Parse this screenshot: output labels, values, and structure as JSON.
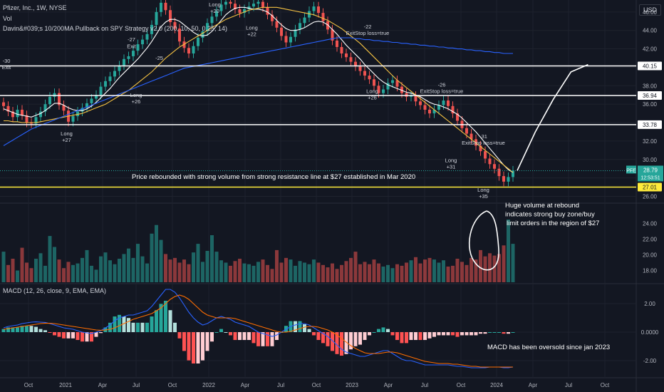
{
  "header": {
    "symbol_line": "Pfizer, Inc., 1W, NYSE",
    "vol_label": "Vol",
    "strategy_line": "Davin&#039;s 10/200MA Pullback on SPY Strategy v2.0 (200, 10, 50, 0.25, 14)",
    "currency": "USD"
  },
  "chart_data": [
    {
      "type": "candlestick",
      "title": "Pfizer, Inc., 1W, NYSE",
      "ticker": "PFE",
      "last_price": "28.79",
      "countdown": "12:53:51",
      "price_axis_ticks": [
        "46.00",
        "44.00",
        "42.00",
        "40.00",
        "38.00",
        "36.00",
        "34.00",
        "32.00",
        "30.00",
        "28.00",
        "26.00"
      ],
      "ylim": [
        25.5,
        47.3
      ],
      "x_axis_ticks": [
        "Oct",
        "2021",
        "Apr",
        "Jul",
        "Oct",
        "2022",
        "Apr",
        "Jul",
        "Oct",
        "2023",
        "Apr",
        "Jul",
        "Oct",
        "2024",
        "Apr",
        "Jul",
        "Oct"
      ],
      "horizontal_levels": [
        {
          "price": 40.15,
          "label": "40.15",
          "color": "#ffffff"
        },
        {
          "price": 36.94,
          "label": "36.94",
          "color": "#ffffff"
        },
        {
          "price": 33.78,
          "label": "33.78",
          "color": "#ffffff"
        },
        {
          "price": 27.01,
          "label": "27.01",
          "color": "#ffeb3b"
        }
      ],
      "series": [
        {
          "name": "Close",
          "color": "#d1d4dc",
          "values": [
            35.8,
            35.2,
            34.6,
            35.4,
            34.8,
            34.0,
            33.9,
            34.6,
            35.2,
            36.0,
            36.8,
            37.2,
            35.9,
            35.3,
            34.1,
            34.7,
            35.2,
            35.6,
            36.1,
            36.6,
            37.0,
            37.9,
            38.5,
            39.0,
            39.6,
            40.2,
            40.9,
            41.2,
            41.8,
            42.5,
            43.0,
            43.6,
            44.6,
            46.0,
            47.0,
            46.2,
            44.9,
            44.2,
            42.8,
            42.1,
            41.5,
            42.3,
            43.2,
            43.9,
            44.8,
            45.5,
            46.1,
            46.8,
            47.1,
            46.9,
            46.3,
            45.9,
            46.3,
            46.6,
            46.9,
            47.1,
            46.5,
            45.7,
            45.0,
            44.3,
            43.4,
            42.7,
            43.3,
            44.1,
            44.8,
            45.4,
            46.1,
            46.6,
            45.9,
            45.0,
            44.1,
            42.9,
            42.2,
            41.5,
            41.1,
            40.6,
            40.1,
            39.6,
            39.1,
            38.7,
            38.0,
            37.2,
            37.6,
            38.3,
            38.6,
            37.9,
            37.2,
            36.8,
            36.9,
            36.3,
            35.9,
            35.4,
            35.0,
            35.4,
            35.9,
            36.4,
            35.8,
            35.0,
            34.2,
            33.4,
            32.8,
            32.2,
            31.5,
            30.9,
            30.1,
            29.5,
            29.0,
            28.2,
            27.6,
            28.1,
            28.8
          ]
        },
        {
          "name": "MA10",
          "color": "#ffffff",
          "values": [
            35.5,
            35.3,
            35.1,
            34.9,
            34.8,
            34.7,
            34.6,
            34.8,
            35.0,
            35.3,
            35.7,
            36.1,
            36.1,
            35.9,
            35.6,
            35.4,
            35.3,
            35.3,
            35.5,
            35.8,
            36.2,
            36.7,
            37.2,
            37.7,
            38.3,
            38.9,
            39.4,
            39.9,
            40.4,
            40.9,
            41.5,
            42.1,
            42.8,
            43.6,
            44.4,
            44.9,
            45.2,
            45.2,
            45.0,
            44.6,
            44.2,
            43.8,
            43.5,
            43.4,
            43.5,
            43.9,
            44.5,
            45.1,
            45.7,
            46.1,
            46.4,
            46.5,
            46.5,
            46.4,
            46.3,
            46.3,
            46.2,
            46.0,
            45.6,
            45.1,
            44.6,
            44.2,
            44.0,
            44.0,
            44.1,
            44.3,
            44.6,
            44.9,
            45.0,
            44.9,
            44.6,
            44.1,
            43.6,
            43.0,
            42.4,
            41.9,
            41.4,
            40.9,
            40.3,
            39.8,
            39.3,
            38.8,
            38.4,
            38.1,
            37.9,
            37.7,
            37.5,
            37.3,
            37.2,
            37.0,
            36.8,
            36.5,
            36.2,
            36.0,
            35.9,
            35.7,
            35.5,
            35.2,
            34.9,
            34.5,
            34.0,
            33.5,
            33.0,
            32.4,
            31.8,
            31.2,
            30.6,
            30.0,
            29.4,
            28.9,
            28.6
          ]
        },
        {
          "name": "MA50",
          "color": "#f5c242",
          "values": [
            34.2,
            34.2,
            34.1,
            34.1,
            34.0,
            34.0,
            34.0,
            34.0,
            34.1,
            34.2,
            34.3,
            34.4,
            34.5,
            34.6,
            34.7,
            34.8,
            34.9,
            35.0,
            35.2,
            35.4,
            35.6,
            35.8,
            36.0,
            36.3,
            36.6,
            36.9,
            37.2,
            37.5,
            37.9,
            38.3,
            38.7,
            39.1,
            39.5,
            40.0,
            40.5,
            41.0,
            41.4,
            41.8,
            42.2,
            42.5,
            42.8,
            43.1,
            43.4,
            43.7,
            44.0,
            44.3,
            44.6,
            44.9,
            45.2,
            45.4,
            45.6,
            45.8,
            46.0,
            46.2,
            46.3,
            46.4,
            46.5,
            46.5,
            46.5,
            46.5,
            46.4,
            46.3,
            46.2,
            46.1,
            46.0,
            45.9,
            45.8,
            45.7,
            45.5,
            45.3,
            45.1,
            44.8,
            44.5,
            44.2,
            43.8,
            43.4,
            43.0,
            42.6,
            42.1,
            41.6,
            41.1,
            40.6,
            40.1,
            39.6,
            39.1,
            38.6,
            38.2,
            37.8,
            37.4,
            37.0,
            36.6,
            36.2,
            35.8,
            35.4,
            35.0,
            34.6,
            34.2,
            33.8,
            33.4,
            33.0,
            32.6,
            32.2,
            31.8,
            31.4,
            31.0,
            30.6,
            30.2,
            29.8,
            29.4,
            29.0,
            28.6
          ]
        },
        {
          "name": "MA200",
          "color": "#2962ff",
          "values": [
            31.5,
            31.8,
            32.1,
            32.4,
            32.7,
            33.0,
            33.3,
            33.5,
            33.7,
            33.9,
            34.1,
            34.3,
            34.5,
            34.7,
            34.9,
            35.1,
            35.3,
            35.5,
            35.7,
            35.9,
            36.1,
            36.3,
            36.5,
            36.7,
            36.9,
            37.1,
            37.3,
            37.5,
            37.7,
            37.9,
            38.1,
            38.3,
            38.5,
            38.7,
            38.9,
            39.1,
            39.3,
            39.5,
            39.7,
            39.9,
            40.0,
            40.1,
            40.2,
            40.3,
            40.4,
            40.5,
            40.6,
            40.7,
            40.8,
            40.9,
            41.0,
            41.1,
            41.2,
            41.3,
            41.4,
            41.5,
            41.6,
            41.7,
            41.8,
            41.9,
            42.0,
            42.1,
            42.2,
            42.3,
            42.4,
            42.5,
            42.6,
            42.7,
            42.8,
            42.9,
            43.0,
            43.1,
            43.2,
            43.2,
            43.2,
            43.2,
            43.1,
            43.1,
            43.0,
            43.0,
            42.9,
            42.9,
            42.8,
            42.8,
            42.7,
            42.7,
            42.6,
            42.6,
            42.5,
            42.5,
            42.4,
            42.4,
            42.3,
            42.3,
            42.2,
            42.2,
            42.1,
            42.1,
            42.0,
            42.0,
            41.9,
            41.9,
            41.8,
            41.8,
            41.7,
            41.7,
            41.6,
            41.6,
            41.5,
            41.5,
            41.5
          ]
        }
      ],
      "projection": [
        [
          28.8,
          28.8
        ],
        [
          30.5,
          33.0
        ],
        [
          32.0,
          36.5
        ],
        [
          33.5,
          39.5
        ],
        [
          34.5,
          40.3
        ]
      ],
      "trade_labels": [
        {
          "bar": 0,
          "text": "-30",
          "price": 40.5
        },
        {
          "bar": 0,
          "text": "Exit",
          "price": 39.8
        },
        {
          "bar": 13,
          "text": "Long",
          "price": 32.6
        },
        {
          "bar": 13,
          "text": "+27",
          "price": 31.9
        },
        {
          "bar": 27,
          "text": "-27",
          "price": 42.8
        },
        {
          "bar": 27,
          "text": "Exit",
          "price": 42.1
        },
        {
          "bar": 28,
          "text": "Long",
          "price": 36.8
        },
        {
          "bar": 28,
          "text": "+26",
          "price": 36.1
        },
        {
          "bar": 33,
          "text": "-25",
          "price": 40.8
        },
        {
          "bar": 45,
          "text": "Long",
          "price": 46.6
        },
        {
          "bar": 45,
          "text": "+20",
          "price": 45.9
        },
        {
          "bar": 53,
          "text": "Long",
          "price": 44.1
        },
        {
          "bar": 53,
          "text": "+22",
          "price": 43.4
        },
        {
          "bar": 78,
          "text": "-22",
          "price": 44.2
        },
        {
          "bar": 78,
          "text": "ExitStop loss=true",
          "price": 43.5
        },
        {
          "bar": 79,
          "text": "Long",
          "price": 37.2
        },
        {
          "bar": 79,
          "text": "+26",
          "price": 36.5
        },
        {
          "bar": 94,
          "text": "-26",
          "price": 37.9
        },
        {
          "bar": 94,
          "text": "ExitStop loss=true",
          "price": 37.2
        },
        {
          "bar": 103,
          "text": "-31",
          "price": 32.3
        },
        {
          "bar": 103,
          "text": "ExitStop loss=true",
          "price": 31.6
        },
        {
          "bar": 96,
          "text": "Long",
          "price": 29.7
        },
        {
          "bar": 96,
          "text": "+31",
          "price": 29.0
        },
        {
          "bar": 103,
          "text": "Long",
          "price": 26.5
        },
        {
          "bar": 103,
          "text": "+35",
          "price": 25.8
        }
      ],
      "annotations": [
        "Price rebounded with strong volume from strong resistance line at $27 established in Mar 2020"
      ]
    },
    {
      "type": "bar",
      "title": "Vol",
      "ylim": [
        16.5,
        26.5
      ],
      "y_axis_ticks": [
        "24.00",
        "22.00",
        "20.00",
        "18.00"
      ],
      "values": [
        20.4,
        18.7,
        19.5,
        18.0,
        20.9,
        19.0,
        18.3,
        19.5,
        20.2,
        18.6,
        22.4,
        21.0,
        19.4,
        18.3,
        19.1,
        18.7,
        18.9,
        19.6,
        20.6,
        18.6,
        18.1,
        19.8,
        20.3,
        19.3,
        18.8,
        19.5,
        20.1,
        20.8,
        19.6,
        21.4,
        19.8,
        18.9,
        22.7,
        23.8,
        21.9,
        20.1,
        19.4,
        19.6,
        19.0,
        19.4,
        18.8,
        20.3,
        21.4,
        19.1,
        20.5,
        22.5,
        20.4,
        19.3,
        19.0,
        18.6,
        19.2,
        19.5,
        18.9,
        18.8,
        18.6,
        19.1,
        19.4,
        18.7,
        18.2,
        20.6,
        19.0,
        19.6,
        19.4,
        18.6,
        19.2,
        19.0,
        18.8,
        19.4,
        19.0,
        18.7,
        18.4,
        18.9,
        18.2,
        18.7,
        19.2,
        19.6,
        20.4,
        18.8,
        19.1,
        18.8,
        19.4,
        18.9,
        18.5,
        18.7,
        18.3,
        18.8,
        18.6,
        19.0,
        19.3,
        19.7,
        18.9,
        19.4,
        19.6,
        19.4,
        19.0,
        19.3,
        18.5,
        18.6,
        19.5,
        19.1,
        18.7,
        19.6,
        19.4,
        20.6,
        19.8,
        20.2,
        19.9,
        20.1,
        21.2,
        24.5,
        21.4
      ],
      "annotations": [
        "Huge volume at rebound",
        "indicates strong buy zone/buy",
        "limit orders in the region of $27"
      ]
    },
    {
      "type": "line",
      "title": "MACD (12, 26, close, 9, EMA, EMA)",
      "ylim": [
        -2.8,
        3.3
      ],
      "y_axis_ticks": [
        "2.00",
        "0.0000",
        "-2.00"
      ],
      "series": [
        {
          "name": "MACD",
          "color": "#2962ff",
          "values": [
            0.3,
            0.4,
            0.45,
            0.5,
            0.6,
            0.65,
            0.7,
            0.72,
            0.7,
            0.68,
            0.6,
            0.5,
            0.4,
            0.3,
            0.25,
            0.2,
            0.1,
            0.0,
            -0.05,
            -0.1,
            0.0,
            0.1,
            0.3,
            0.5,
            0.8,
            1.0,
            1.1,
            1.2,
            1.2,
            1.3,
            1.4,
            1.5,
            1.8,
            2.2,
            2.6,
            3.0,
            3.0,
            2.8,
            2.4,
            1.9,
            1.4,
            1.0,
            0.7,
            0.5,
            0.6,
            0.8,
            1.0,
            1.1,
            1.0,
            0.9,
            0.7,
            0.6,
            0.5,
            0.4,
            0.2,
            0.0,
            -0.1,
            -0.2,
            -0.3,
            -0.2,
            0.0,
            0.2,
            0.4,
            0.5,
            0.6,
            0.6,
            0.5,
            0.3,
            0.1,
            -0.1,
            -0.3,
            -0.6,
            -0.9,
            -1.2,
            -1.4,
            -1.5,
            -1.6,
            -1.7,
            -1.7,
            -1.6,
            -1.5,
            -1.4,
            -1.3,
            -1.3,
            -1.5,
            -1.7,
            -1.9,
            -2.0,
            -2.0,
            -2.1,
            -2.2,
            -2.3,
            -2.3,
            -2.3,
            -2.3,
            -2.3,
            -2.3,
            -2.35,
            -2.4,
            -2.4,
            -2.45,
            -2.5,
            -2.5,
            -2.5,
            -2.5,
            -2.45,
            -2.45,
            -2.45,
            -2.5,
            -2.5,
            -2.45
          ]
        },
        {
          "name": "Signal",
          "color": "#ff6d00",
          "values": [
            0.2,
            0.25,
            0.3,
            0.35,
            0.4,
            0.45,
            0.5,
            0.55,
            0.6,
            0.62,
            0.62,
            0.6,
            0.55,
            0.5,
            0.45,
            0.4,
            0.35,
            0.3,
            0.25,
            0.2,
            0.15,
            0.13,
            0.15,
            0.2,
            0.3,
            0.45,
            0.6,
            0.75,
            0.9,
            1.0,
            1.1,
            1.2,
            1.3,
            1.5,
            1.7,
            2.0,
            2.3,
            2.5,
            2.6,
            2.5,
            2.3,
            2.0,
            1.7,
            1.4,
            1.2,
            1.1,
            1.0,
            1.0,
            1.0,
            1.0,
            0.95,
            0.85,
            0.75,
            0.65,
            0.55,
            0.45,
            0.35,
            0.25,
            0.15,
            0.05,
            0.0,
            0.0,
            0.05,
            0.15,
            0.25,
            0.35,
            0.4,
            0.4,
            0.35,
            0.25,
            0.15,
            0.0,
            -0.2,
            -0.45,
            -0.7,
            -0.95,
            -1.15,
            -1.3,
            -1.45,
            -1.5,
            -1.5,
            -1.5,
            -1.45,
            -1.4,
            -1.4,
            -1.45,
            -1.55,
            -1.65,
            -1.75,
            -1.85,
            -1.95,
            -2.05,
            -2.1,
            -2.15,
            -2.2,
            -2.2,
            -2.2,
            -2.25,
            -2.25,
            -2.3,
            -2.35,
            -2.4,
            -2.4,
            -2.45,
            -2.45,
            -2.45,
            -2.45,
            -2.45,
            -2.45,
            -2.45,
            -2.45
          ]
        }
      ],
      "annotations": [
        "MACD has been oversold since jan 2023"
      ]
    }
  ],
  "colors": {
    "background": "#131722",
    "up": "#26a69a",
    "down": "#ef5350",
    "level_line": "#ffffff",
    "support_line": "#ffeb3b",
    "grid": "#1e222d"
  }
}
